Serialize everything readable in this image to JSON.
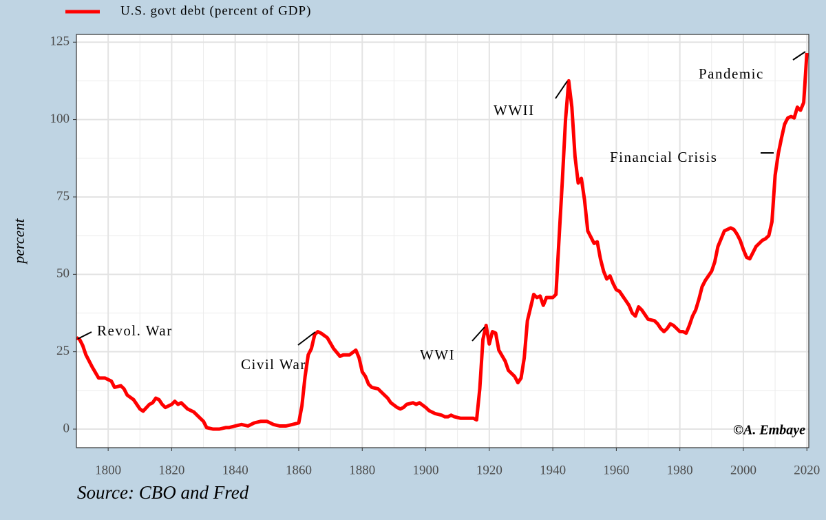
{
  "chart_data": {
    "type": "line",
    "y_label": "percent",
    "source": "Source: CBO and Fred",
    "credit": "©A. Embaye",
    "annotations": [
      "Revol. War",
      "Civil War",
      "WWI",
      "WWII",
      "Financial Crisis",
      "Pandemic"
    ],
    "x": [
      1790,
      1791,
      1792,
      1793,
      1795,
      1797,
      1799,
      1801,
      1802,
      1804,
      1805,
      1806,
      1808,
      1810,
      1811,
      1813,
      1814,
      1815,
      1816,
      1817,
      1818,
      1820,
      1821,
      1822,
      1823,
      1825,
      1827,
      1829,
      1830,
      1831,
      1833,
      1835,
      1837,
      1838,
      1840,
      1842,
      1844,
      1846,
      1848,
      1850,
      1852,
      1854,
      1856,
      1858,
      1860,
      1861,
      1862,
      1863,
      1864,
      1865,
      1866,
      1867,
      1869,
      1871,
      1873,
      1874,
      1876,
      1878,
      1879,
      1880,
      1881,
      1882,
      1883,
      1885,
      1886,
      1888,
      1889,
      1891,
      1892,
      1893,
      1894,
      1896,
      1897,
      1898,
      1900,
      1901,
      1903,
      1905,
      1906,
      1907,
      1908,
      1909,
      1911,
      1913,
      1914,
      1915,
      1916,
      1917,
      1918,
      1919,
      1920,
      1921,
      1922,
      1923,
      1925,
      1926,
      1928,
      1929,
      1930,
      1931,
      1932,
      1934,
      1935,
      1936,
      1937,
      1938,
      1940,
      1941,
      1942,
      1943,
      1944,
      1945,
      1946,
      1947,
      1948,
      1949,
      1950,
      1951,
      1952,
      1953,
      1954,
      1955,
      1956,
      1957,
      1958,
      1959,
      1960,
      1961,
      1962,
      1963,
      1964,
      1965,
      1966,
      1967,
      1968,
      1969,
      1970,
      1972,
      1973,
      1974,
      1975,
      1976,
      1977,
      1978,
      1979,
      1980,
      1981,
      1982,
      1983,
      1984,
      1985,
      1986,
      1987,
      1988,
      1989,
      1990,
      1991,
      1992,
      1993,
      1994,
      1995,
      1996,
      1997,
      1998,
      1999,
      2000,
      2001,
      2002,
      2003,
      2004,
      2005,
      2006,
      2007,
      2008,
      2009,
      2010,
      2011,
      2012,
      2013,
      2014,
      2015,
      2016,
      2017,
      2018,
      2019,
      2020
    ],
    "series": [
      {
        "name": "U.S. govt debt (percent of GDP)",
        "color": "#ff0000",
        "values": [
          29.5,
          29,
          27,
          24,
          20,
          16.5,
          16.5,
          15.5,
          13.5,
          14,
          13,
          11,
          9.5,
          6.5,
          5.8,
          8,
          8.5,
          10,
          9.5,
          8,
          7,
          8,
          9,
          8,
          8.5,
          6.5,
          5.5,
          3.5,
          2.5,
          0.5,
          0,
          0,
          0.5,
          0.5,
          1,
          1.5,
          1,
          2,
          2.5,
          2.5,
          1.5,
          1,
          1,
          1.5,
          2,
          7.5,
          17,
          24,
          26,
          30.5,
          31.5,
          31,
          29.5,
          26,
          23.5,
          24,
          24,
          25.5,
          23,
          18.5,
          17,
          14.5,
          13.5,
          13,
          12,
          10,
          8.5,
          7,
          6.5,
          7,
          8,
          8.5,
          8,
          8.5,
          7,
          6,
          5,
          4.5,
          4,
          4,
          4.5,
          4,
          3.5,
          3.5,
          3.5,
          3.5,
          3,
          13,
          29,
          33.5,
          27.5,
          31.5,
          31,
          25.5,
          22,
          19,
          17,
          15,
          16.5,
          23,
          35,
          43.5,
          42.5,
          43,
          40,
          42.5,
          42.5,
          43.5,
          62,
          80,
          100,
          112.5,
          104,
          88,
          79.5,
          81,
          74,
          64,
          62,
          60,
          60.5,
          55,
          51,
          48.5,
          49.5,
          47,
          45,
          44.5,
          43,
          41.5,
          40,
          37.5,
          36.5,
          39.5,
          38.5,
          37,
          35.5,
          35,
          34,
          32.5,
          31.5,
          32.5,
          34,
          33.5,
          32.5,
          31.5,
          31.5,
          31,
          33.5,
          36.5,
          38.5,
          42,
          46,
          48,
          49.5,
          51,
          54,
          59,
          61.5,
          64,
          64.5,
          65,
          64.5,
          63,
          61,
          58,
          55.5,
          55,
          57,
          59,
          60,
          61,
          61.5,
          62.5,
          67,
          82,
          89,
          94,
          98.5,
          100.5,
          101,
          100.5,
          104,
          103,
          105.5,
          121.5
        ]
      }
    ],
    "xlim": [
      1790,
      2020.6
    ],
    "ylim": [
      -6,
      127.5
    ],
    "xticks": [
      1800,
      1820,
      1840,
      1860,
      1880,
      1900,
      1920,
      1940,
      1960,
      1980,
      2000,
      2020
    ],
    "yticks": [
      0,
      25,
      50,
      75,
      100,
      125
    ],
    "grid": true
  }
}
